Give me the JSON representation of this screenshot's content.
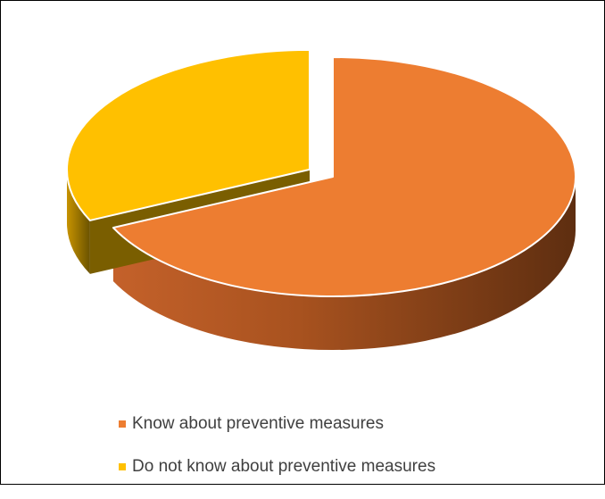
{
  "chart_data": {
    "type": "pie",
    "style": "3d-exploded",
    "title": "",
    "slices": [
      {
        "label": "Know about preventive measures",
        "value": 68,
        "color": "#ED7D31"
      },
      {
        "label": "Do not know about preventive measures",
        "value": 32,
        "color": "#FFC000"
      }
    ],
    "legend_position": "bottom"
  }
}
